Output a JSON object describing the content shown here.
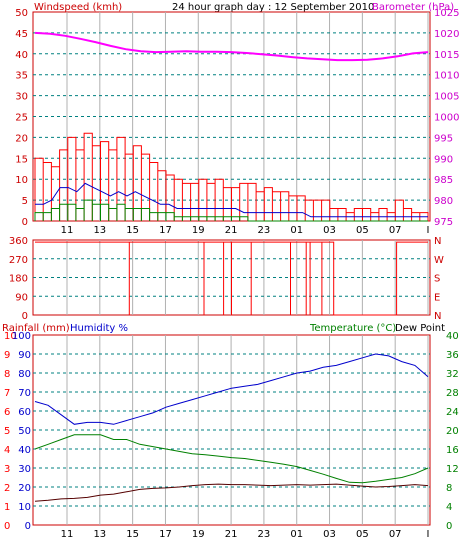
{
  "header": {
    "title": "24 hour graph day : 12 September 2010",
    "wind_label": "Windspeed (kmh)",
    "baro_label": "Barometer (hPa)"
  },
  "lower_header": {
    "rain_label": "Rainfall (mm)",
    "humidity_label": "Humidity %",
    "temp_label": "Temperature (°C)",
    "dew_label": "Dew Point"
  },
  "colors": {
    "wind": "#ff0000",
    "gust": "#ff0000",
    "baro": "#ff00ff",
    "wind_avg": "#0000cc",
    "wind_low": "#008800",
    "direction": "#ff0000",
    "humidity": "#0000cc",
    "temperature": "#008000",
    "dew": "#550000",
    "rain_axis": "#ff0000",
    "humidity_axis": "#0000cc",
    "temp_axis": "#008000",
    "grid_v": "#b0b0b0",
    "grid_h": "#008080",
    "frame_red": "#cc0000"
  },
  "chart_data": [
    {
      "panel": "wind-baro",
      "type": "line",
      "title": "24 hour graph day : 12 September 2010",
      "x_ticks": [
        "11",
        "13",
        "15",
        "17",
        "19",
        "21",
        "23",
        "01",
        "03",
        "05",
        "07",
        "I"
      ],
      "y_left": {
        "label": "Windspeed (kmh)",
        "ticks": [
          "0",
          "5",
          "10",
          "15",
          "20",
          "25",
          "30",
          "35",
          "40",
          "45",
          "50"
        ],
        "range": [
          0,
          50
        ]
      },
      "y_right": {
        "label": "Barometer (hPa)",
        "ticks": [
          "975",
          "980",
          "985",
          "990",
          "995",
          "1000",
          "1005",
          "1010",
          "1015",
          "1020",
          "1025"
        ],
        "range": [
          975,
          1025
        ]
      },
      "barometer": [
        1020,
        1019.8,
        1019.3,
        1018.6,
        1017.8,
        1016.9,
        1016.1,
        1015.6,
        1015.4,
        1015.5,
        1015.6,
        1015.5,
        1015.5,
        1015.4,
        1015.2,
        1014.9,
        1014.6,
        1014.2,
        1013.9,
        1013.7,
        1013.5,
        1013.5,
        1013.6,
        1013.9,
        1014.4,
        1015.1,
        1015.4
      ],
      "gust": [
        15,
        14,
        13,
        17,
        20,
        17,
        21,
        18,
        19,
        17,
        20,
        16,
        18,
        16,
        14,
        12,
        11,
        10,
        9,
        9,
        10,
        9,
        10,
        8,
        8,
        9,
        9,
        7,
        8,
        7,
        7,
        6,
        6,
        5,
        5,
        5,
        3,
        3,
        2,
        3,
        3,
        2,
        3,
        2,
        5,
        3,
        2,
        2
      ],
      "wind_avg": [
        4,
        4,
        5,
        8,
        8,
        7,
        9,
        8,
        7,
        6,
        7,
        6,
        7,
        6,
        5,
        4,
        4,
        3,
        3,
        3,
        3,
        3,
        3,
        3,
        3,
        2,
        2,
        2,
        2,
        2,
        2,
        2,
        2,
        1,
        1,
        1,
        1,
        1,
        1,
        1,
        1,
        1,
        1,
        1,
        1,
        1,
        1,
        1
      ],
      "wind_low": [
        2,
        2,
        3,
        4,
        4,
        3,
        5,
        4,
        4,
        3,
        4,
        3,
        3,
        3,
        2,
        2,
        2,
        1,
        1,
        1,
        1,
        1,
        1,
        1,
        1,
        1,
        0,
        0,
        0,
        0,
        0,
        0,
        0,
        0,
        0,
        0,
        0,
        0,
        0,
        0,
        0,
        0,
        0,
        0,
        0,
        0,
        0,
        0
      ]
    },
    {
      "panel": "wind-direction",
      "type": "line",
      "y_left": {
        "ticks": [
          "360",
          "270",
          "180",
          "90",
          "0"
        ],
        "range": [
          0,
          360
        ]
      },
      "y_right": {
        "ticks": [
          "N",
          "W",
          "S",
          "E",
          "N"
        ]
      },
      "direction_baseline": 350,
      "direction_drops": [
        0.24,
        0.43,
        0.48,
        0.5,
        0.55,
        0.65,
        0.69,
        0.7,
        0.73,
        0.76
      ],
      "calm_period": [
        0.76,
        0.92
      ]
    },
    {
      "panel": "rain-humidity-temp",
      "type": "line",
      "y_rain": {
        "label": "Rainfall (mm)",
        "ticks": [
          "0",
          "1",
          "2",
          "3",
          "4",
          "5",
          "6",
          "7",
          "8",
          "9",
          "10"
        ],
        "range": [
          0,
          10
        ]
      },
      "y_humidity": {
        "label": "Humidity %",
        "ticks": [
          "0",
          "10",
          "20",
          "30",
          "40",
          "50",
          "60",
          "70",
          "80",
          "90",
          "100"
        ],
        "range": [
          0,
          100
        ]
      },
      "y_temp": {
        "label": "Temperature (°C)",
        "ticks": [
          "0",
          "4",
          "8",
          "12",
          "16",
          "20",
          "24",
          "28",
          "32",
          "36",
          "40"
        ],
        "range": [
          0,
          40
        ]
      },
      "humidity": [
        65,
        63,
        58,
        53,
        54,
        54,
        53,
        55,
        57,
        59,
        62,
        64,
        66,
        68,
        70,
        72,
        73,
        74,
        76,
        78,
        80,
        81,
        83,
        84,
        86,
        88,
        90,
        89,
        86,
        84,
        78
      ],
      "temperature": [
        16,
        17,
        18,
        19,
        19,
        19,
        18,
        18,
        17,
        16.5,
        16,
        15.5,
        15,
        14.8,
        14.5,
        14.2,
        14,
        13.6,
        13.2,
        12.8,
        12.3,
        11.5,
        10.7,
        9.8,
        9,
        8.9,
        9.2,
        9.6,
        10,
        10.8,
        12
      ],
      "dew": [
        5,
        5.2,
        5.5,
        5.6,
        5.8,
        6.3,
        6.5,
        7,
        7.5,
        7.7,
        7.8,
        8,
        8.3,
        8.5,
        8.6,
        8.5,
        8.5,
        8.4,
        8.3,
        8.4,
        8.5,
        8.4,
        8.5,
        8.6,
        8.4,
        8.2,
        8,
        8.1,
        8.3,
        8.5,
        8.3
      ],
      "rain": [
        0,
        0,
        0,
        0,
        0,
        0,
        0,
        0,
        0,
        0,
        0,
        0,
        0,
        0,
        0,
        0,
        0,
        0,
        0,
        0,
        0,
        0,
        0,
        0,
        0,
        0,
        0,
        0,
        0,
        0,
        0
      ]
    }
  ]
}
